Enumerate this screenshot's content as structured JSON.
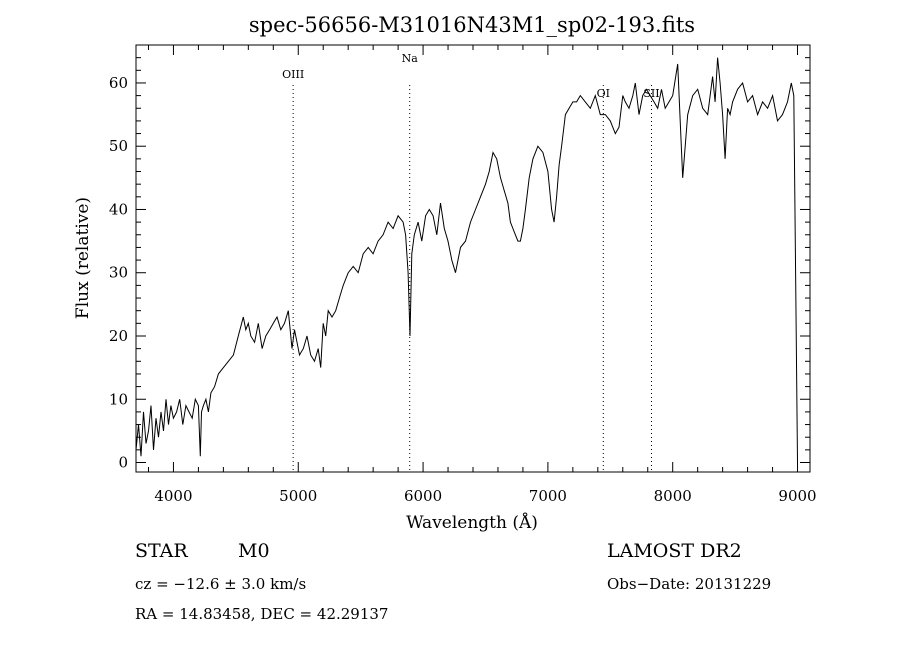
{
  "chart_data": {
    "type": "line",
    "title": "spec-56656-M31016N43M1_sp02-193.fits",
    "xlabel": "Wavelength (Å)",
    "ylabel": "Flux (relative)",
    "xlim": [
      3700,
      9100
    ],
    "ylim": [
      -1.5,
      66
    ],
    "xticks": [
      4000,
      5000,
      6000,
      7000,
      8000,
      9000
    ],
    "yticks": [
      0,
      10,
      20,
      30,
      40,
      50,
      60
    ],
    "series": [
      {
        "x": [
          3700,
          3720,
          3740,
          3760,
          3780,
          3800,
          3820,
          3840,
          3860,
          3880,
          3900,
          3920,
          3940,
          3960,
          3980,
          4000,
          4025,
          4050,
          4075,
          4100,
          4125,
          4150,
          4175,
          4200,
          4215,
          4225,
          4240,
          4260,
          4280,
          4300,
          4330,
          4360,
          4400,
          4440,
          4480,
          4520,
          4560,
          4580,
          4600,
          4620,
          4650,
          4680,
          4710,
          4740,
          4770,
          4800,
          4830,
          4860,
          4890,
          4920,
          4950,
          4970,
          4990,
          5010,
          5040,
          5070,
          5100,
          5130,
          5160,
          5180,
          5200,
          5220,
          5240,
          5270,
          5300,
          5330,
          5360,
          5400,
          5440,
          5480,
          5520,
          5560,
          5600,
          5640,
          5680,
          5720,
          5760,
          5800,
          5840,
          5860,
          5880,
          5895,
          5910,
          5930,
          5960,
          5990,
          6020,
          6050,
          6080,
          6110,
          6140,
          6170,
          6200,
          6230,
          6260,
          6300,
          6340,
          6380,
          6420,
          6460,
          6500,
          6530,
          6560,
          6590,
          6620,
          6650,
          6680,
          6700,
          6720,
          6740,
          6760,
          6780,
          6800,
          6820,
          6850,
          6880,
          6920,
          6960,
          7000,
          7030,
          7050,
          7070,
          7090,
          7110,
          7140,
          7170,
          7200,
          7230,
          7260,
          7300,
          7340,
          7380,
          7420,
          7460,
          7500,
          7540,
          7570,
          7600,
          7620,
          7650,
          7680,
          7700,
          7730,
          7760,
          7790,
          7820,
          7850,
          7880,
          7910,
          7940,
          7970,
          8000,
          8040,
          8080,
          8120,
          8160,
          8200,
          8240,
          8280,
          8320,
          8340,
          8360,
          8380,
          8400,
          8420,
          8440,
          8460,
          8480,
          8520,
          8560,
          8600,
          8640,
          8680,
          8720,
          8760,
          8800,
          8840,
          8880,
          8920,
          8950,
          8970,
          8985,
          9000
        ],
        "y": [
          2,
          6,
          1,
          8,
          3,
          5,
          9,
          2,
          7,
          4,
          8,
          5,
          10,
          6,
          9,
          7,
          8,
          10,
          6,
          9,
          8,
          7,
          10,
          9,
          1,
          8,
          9,
          10,
          8,
          11,
          12,
          14,
          15,
          16,
          17,
          20,
          23,
          21,
          22,
          20,
          19,
          22,
          18,
          20,
          21,
          22,
          23,
          21,
          22,
          24,
          18,
          21,
          19,
          17,
          18,
          20,
          17,
          16,
          18,
          15,
          22,
          20,
          24,
          23,
          24,
          26,
          28,
          30,
          31,
          30,
          33,
          34,
          33,
          35,
          36,
          38,
          37,
          39,
          38,
          36,
          30,
          20,
          33,
          36,
          38,
          35,
          39,
          40,
          39,
          36,
          41,
          37,
          35,
          32,
          30,
          34,
          35,
          38,
          40,
          42,
          44,
          46,
          49,
          48,
          45,
          43,
          41,
          38,
          37,
          36,
          35,
          35,
          37,
          40,
          45,
          48,
          50,
          49,
          46,
          40,
          38,
          42,
          47,
          50,
          55,
          56,
          57,
          57,
          58,
          57,
          56,
          58,
          55,
          55,
          54,
          52,
          53,
          58,
          57,
          56,
          58,
          60,
          55,
          58,
          59,
          58,
          57,
          56,
          59,
          56,
          57,
          58,
          63,
          45,
          55,
          58,
          59,
          56,
          55,
          61,
          57,
          64,
          60,
          55,
          48,
          56,
          55,
          57,
          59,
          60,
          57,
          58,
          55,
          57,
          56,
          58,
          54,
          55,
          57,
          60,
          58,
          30,
          0
        ]
      }
    ],
    "annotations": [
      {
        "label": "OIII",
        "x": 4959
      },
      {
        "label": "Na",
        "x": 5893
      },
      {
        "label": "OI",
        "x": 7444
      },
      {
        "label": "SII",
        "x": 7830
      }
    ]
  },
  "info": {
    "object_class": "STAR",
    "subclass": "M0",
    "survey": "LAMOST DR2",
    "cz": "cz = −12.6 ± 3.0 km/s",
    "obs_date": "Obs−Date: 20131229",
    "coords": "RA =  14.83458, DEC =  42.29137"
  }
}
